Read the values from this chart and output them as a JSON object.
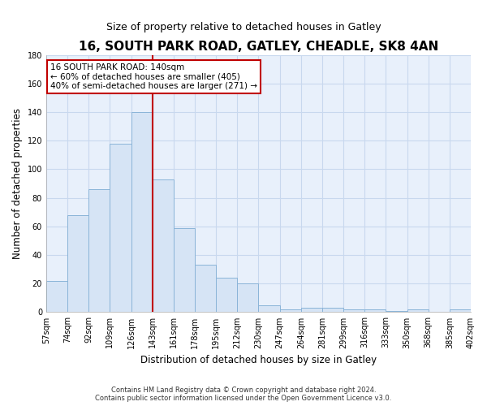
{
  "title1": "16, SOUTH PARK ROAD, GATLEY, CHEADLE, SK8 4AN",
  "title2": "Size of property relative to detached houses in Gatley",
  "xlabel": "Distribution of detached houses by size in Gatley",
  "ylabel": "Number of detached properties",
  "bar_labels": [
    "57sqm",
    "74sqm",
    "92sqm",
    "109sqm",
    "126sqm",
    "143sqm",
    "161sqm",
    "178sqm",
    "195sqm",
    "212sqm",
    "230sqm",
    "247sqm",
    "264sqm",
    "281sqm",
    "299sqm",
    "316sqm",
    "333sqm",
    "350sqm",
    "368sqm",
    "385sqm",
    "402sqm"
  ],
  "bar_heights": [
    22,
    68,
    86,
    118,
    140,
    93,
    59,
    33,
    24,
    20,
    5,
    2,
    3,
    3,
    2,
    2,
    1,
    2,
    0,
    2
  ],
  "bar_color": "#d6e4f5",
  "bar_edge_color": "#8ab4d8",
  "property_line_x": 5,
  "property_line_color": "#c00000",
  "ylim": [
    0,
    180
  ],
  "yticks": [
    0,
    20,
    40,
    60,
    80,
    100,
    120,
    140,
    160,
    180
  ],
  "annotation_title": "16 SOUTH PARK ROAD: 140sqm",
  "annotation_line1": "← 60% of detached houses are smaller (405)",
  "annotation_line2": "40% of semi-detached houses are larger (271) →",
  "annotation_box_color": "#ffffff",
  "annotation_box_edge": "#c00000",
  "footer1": "Contains HM Land Registry data © Crown copyright and database right 2024.",
  "footer2": "Contains public sector information licensed under the Open Government Licence v3.0.",
  "bg_color": "#e8f0fb",
  "grid_color": "#c8d8ee",
  "title1_fontsize": 11,
  "title2_fontsize": 9
}
